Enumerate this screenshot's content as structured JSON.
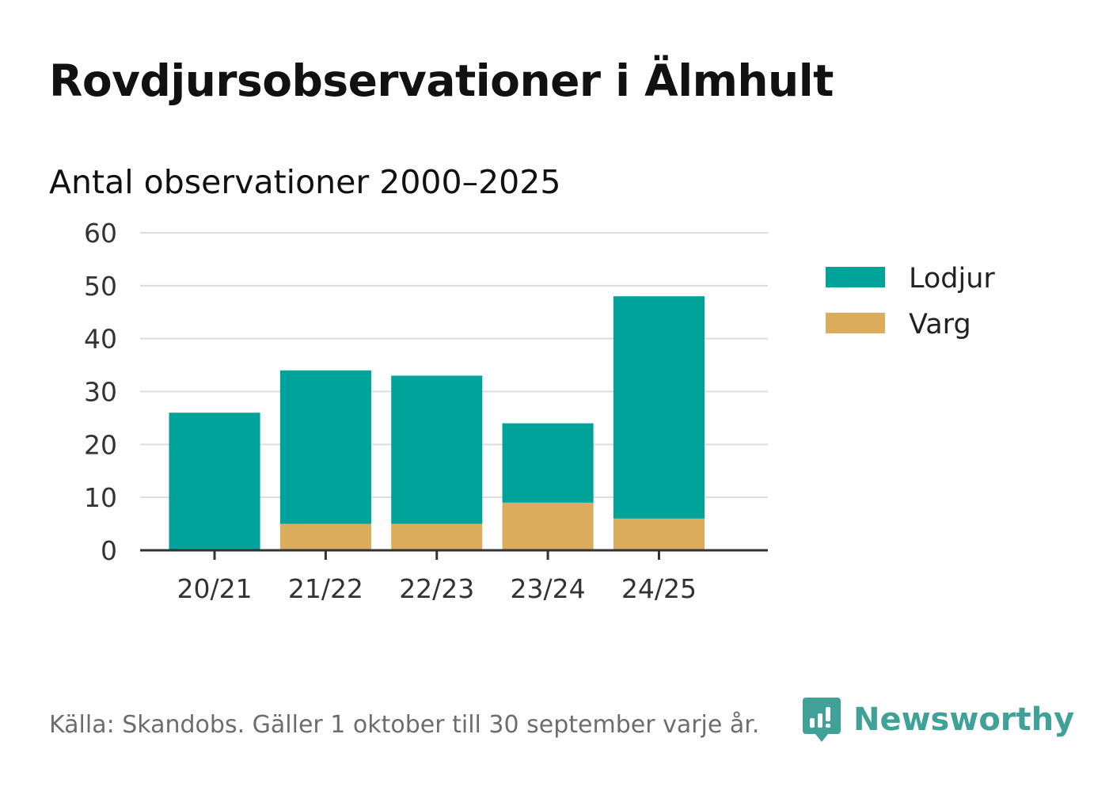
{
  "header": {
    "title": "Rovdjursobservationer i Älmhult",
    "subtitle": "Antal observationer 2000–2025"
  },
  "chart_data": {
    "type": "bar",
    "stacked": true,
    "categories": [
      "20/21",
      "21/22",
      "22/23",
      "23/24",
      "24/25"
    ],
    "series": [
      {
        "name": "Varg",
        "color": "#dbac5b",
        "values": [
          0,
          5,
          5,
          9,
          6
        ]
      },
      {
        "name": "Lodjur",
        "color": "#00a39a",
        "values": [
          26,
          29,
          28,
          15,
          42
        ]
      }
    ],
    "legend_order": [
      "Lodjur",
      "Varg"
    ],
    "legend_position": "right",
    "ylim": [
      0,
      60
    ],
    "yticks": [
      "0",
      "10",
      "20",
      "30",
      "40",
      "50",
      "60"
    ],
    "grid": true,
    "xlabel": "",
    "ylabel": ""
  },
  "footer": {
    "source": "Källa: Skandobs. Gäller 1 oktober till 30 september varje år.",
    "brand": "Newsworthy",
    "brand_color": "#3fa198"
  }
}
